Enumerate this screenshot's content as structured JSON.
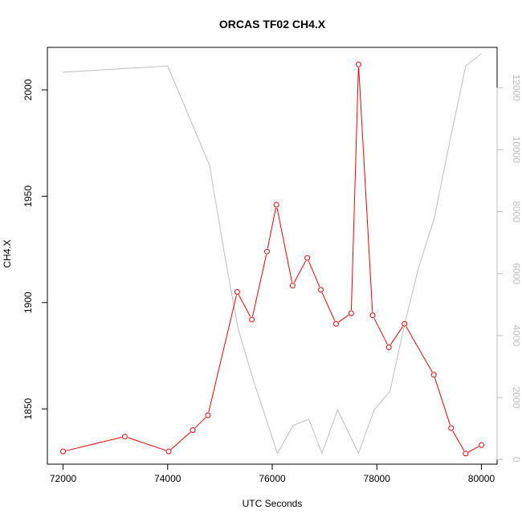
{
  "chart_data": {
    "type": "line",
    "title": "ORCAS TF02 CH4.X",
    "xlabel": "UTC Seconds",
    "ylabel": "CH4.X",
    "xlim": [
      71700,
      80300
    ],
    "ylim": [
      1824,
      2020
    ],
    "y2lim": [
      -150,
      13300
    ],
    "x_ticks": [
      72000,
      74000,
      76000,
      78000,
      80000
    ],
    "y_ticks": [
      1850,
      1900,
      1950,
      2000
    ],
    "y2_ticks": [
      0,
      2000,
      4000,
      6000,
      8000,
      10000,
      12000
    ],
    "grid": false,
    "series": [
      {
        "role": "primary",
        "color": "#ff0000",
        "marker": "open-circle",
        "x": [
          72000,
          73180,
          74020,
          74480,
          74770,
          75330,
          75610,
          75900,
          76080,
          76390,
          76670,
          76930,
          77220,
          77510,
          77650,
          77920,
          78230,
          78530,
          79090,
          79420,
          79700,
          80000
        ],
        "y": [
          1830,
          1837,
          1830,
          1840,
          1847,
          1905,
          1892,
          1924,
          1946,
          1908,
          1921,
          1906,
          1890,
          1895,
          2012,
          1894,
          1879,
          1890,
          1866,
          1841,
          1829,
          1833
        ]
      },
      {
        "role": "secondary",
        "color": "#bebebe",
        "axis": "right",
        "x": [
          72000,
          74000,
          74500,
          74800,
          75100,
          75350,
          75650,
          76100,
          76400,
          76700,
          76950,
          77250,
          77650,
          77950,
          78250,
          78550,
          78800,
          79100,
          79400,
          79700,
          80000
        ],
        "y": [
          12500,
          12700,
          10700,
          9500,
          6500,
          4200,
          2500,
          200,
          1100,
          1300,
          200,
          1600,
          200,
          1600,
          2200,
          4500,
          6200,
          7800,
          10300,
          12700,
          13100
        ]
      }
    ]
  }
}
